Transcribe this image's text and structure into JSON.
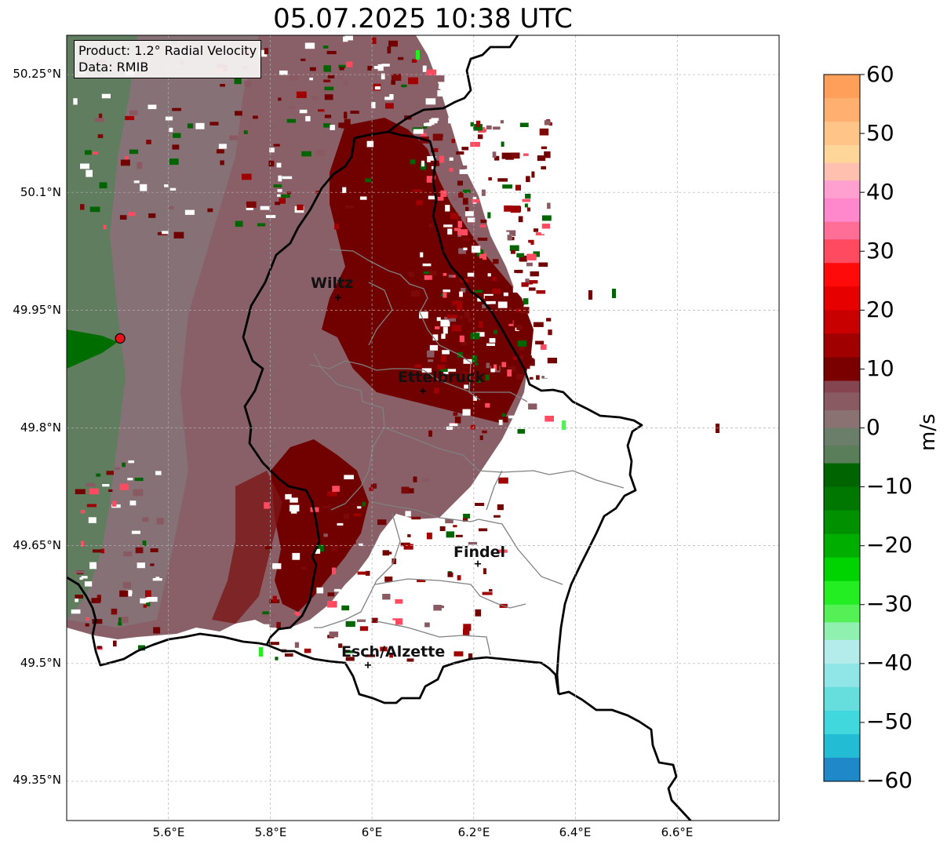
{
  "title": "05.07.2025 10:38 UTC",
  "info": {
    "product": "Product: 1.2° Radial Velocity",
    "data": "Data: RMIB"
  },
  "map": {
    "lon_range": [
      5.4,
      6.8
    ],
    "lat_range": [
      49.3,
      50.3
    ],
    "lat_ticks": [
      {
        "value": 50.25,
        "label": "50.25°N"
      },
      {
        "value": 50.1,
        "label": "50.1°N"
      },
      {
        "value": 49.95,
        "label": "49.95°N"
      },
      {
        "value": 49.8,
        "label": "49.8°N"
      },
      {
        "value": 49.65,
        "label": "49.65°N"
      },
      {
        "value": 49.5,
        "label": "49.5°N"
      },
      {
        "value": 49.35,
        "label": "49.35°N"
      }
    ],
    "lon_ticks": [
      {
        "value": 5.6,
        "label": "5.6°E"
      },
      {
        "value": 5.8,
        "label": "5.8°E"
      },
      {
        "value": 6.0,
        "label": "6°E"
      },
      {
        "value": 6.2,
        "label": "6.2°E"
      },
      {
        "value": 6.4,
        "label": "6.4°E"
      },
      {
        "value": 6.6,
        "label": "6.6°E"
      }
    ],
    "radar_site": {
      "lon": 5.505,
      "lat": 49.914,
      "color": "#e8141c"
    },
    "cities": [
      {
        "name": "Wiltz",
        "lon": 5.933,
        "lat": 49.966
      },
      {
        "name": "Ettelbruck",
        "lon": 6.1,
        "lat": 49.847
      },
      {
        "name": "Findel",
        "lon": 6.208,
        "lat": 49.627
      },
      {
        "name": "Esch/Alzette",
        "lon": 5.992,
        "lat": 49.498
      }
    ],
    "colors": {
      "border": "#000000",
      "cantons": "#808080",
      "grid": "#b0b0b0",
      "strong_inbound": "#6e0000",
      "weak_inbound": "#8a5a62",
      "near_zero": "#8a7070",
      "outbound": "#5f8060",
      "strong_outbound": "#006400"
    }
  },
  "colorbar": {
    "unit": "m/s",
    "min": -60,
    "max": 60,
    "ticks": [
      {
        "value": 60,
        "label": "60"
      },
      {
        "value": 50,
        "label": "50"
      },
      {
        "value": 40,
        "label": "40"
      },
      {
        "value": 30,
        "label": "30"
      },
      {
        "value": 20,
        "label": "20"
      },
      {
        "value": 10,
        "label": "10"
      },
      {
        "value": 0,
        "label": "0"
      },
      {
        "value": -10,
        "label": "−10"
      },
      {
        "value": -20,
        "label": "−20"
      },
      {
        "value": -30,
        "label": "−30"
      },
      {
        "value": -40,
        "label": "−40"
      },
      {
        "value": -50,
        "label": "−50"
      },
      {
        "value": -60,
        "label": "−60"
      }
    ],
    "stops": [
      {
        "from": 56,
        "to": 60,
        "color": "#ff9f5a"
      },
      {
        "from": 52,
        "to": 56,
        "color": "#ffb070"
      },
      {
        "from": 48,
        "to": 52,
        "color": "#ffc488"
      },
      {
        "from": 45,
        "to": 48,
        "color": "#ffd69a"
      },
      {
        "from": 42,
        "to": 45,
        "color": "#ffc0b0"
      },
      {
        "from": 39,
        "to": 42,
        "color": "#ffa0d0"
      },
      {
        "from": 35,
        "to": 39,
        "color": "#ff88cc"
      },
      {
        "from": 32,
        "to": 35,
        "color": "#ff6e96"
      },
      {
        "from": 28,
        "to": 32,
        "color": "#ff4a60"
      },
      {
        "from": 24,
        "to": 28,
        "color": "#ff0a0a"
      },
      {
        "from": 20,
        "to": 24,
        "color": "#e60000"
      },
      {
        "from": 16,
        "to": 20,
        "color": "#c80000"
      },
      {
        "from": 12,
        "to": 16,
        "color": "#a00000"
      },
      {
        "from": 8,
        "to": 12,
        "color": "#7a0000"
      },
      {
        "from": 6,
        "to": 8,
        "color": "#844450"
      },
      {
        "from": 3,
        "to": 6,
        "color": "#8a5a62"
      },
      {
        "from": 0,
        "to": 3,
        "color": "#8a7272"
      },
      {
        "from": -3,
        "to": 0,
        "color": "#6a7e6a"
      },
      {
        "from": -6,
        "to": -3,
        "color": "#5a7e5a"
      },
      {
        "from": -10,
        "to": -6,
        "color": "#006400"
      },
      {
        "from": -14,
        "to": -10,
        "color": "#007800"
      },
      {
        "from": -18,
        "to": -14,
        "color": "#009000"
      },
      {
        "from": -22,
        "to": -18,
        "color": "#00ae00"
      },
      {
        "from": -26,
        "to": -22,
        "color": "#00d400"
      },
      {
        "from": -30,
        "to": -26,
        "color": "#22ee22"
      },
      {
        "from": -33,
        "to": -30,
        "color": "#55f055"
      },
      {
        "from": -36,
        "to": -33,
        "color": "#8ff0b0"
      },
      {
        "from": -40,
        "to": -36,
        "color": "#b4ecec"
      },
      {
        "from": -44,
        "to": -40,
        "color": "#90e6e6"
      },
      {
        "from": -48,
        "to": -44,
        "color": "#66dede"
      },
      {
        "from": -52,
        "to": -48,
        "color": "#40d8dc"
      },
      {
        "from": -56,
        "to": -52,
        "color": "#22bcd4"
      },
      {
        "from": -60,
        "to": -56,
        "color": "#1e88c8"
      }
    ]
  }
}
